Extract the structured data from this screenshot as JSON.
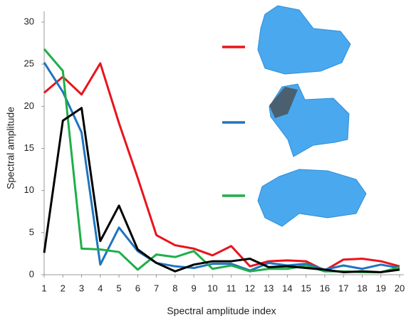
{
  "chart_data": {
    "type": "line",
    "x_label": "Spectral amplitude index",
    "y_label": "Spectral amplitude",
    "x": [
      1,
      2,
      3,
      4,
      5,
      6,
      7,
      8,
      9,
      10,
      11,
      12,
      13,
      14,
      15,
      16,
      17,
      18,
      19,
      20
    ],
    "xlim": [
      1,
      20
    ],
    "xticks": [
      1,
      2,
      3,
      4,
      5,
      6,
      7,
      8,
      9,
      10,
      11,
      12,
      13,
      14,
      15,
      16,
      17,
      18,
      19,
      20
    ],
    "ylim": [
      0,
      30
    ],
    "yticks": [
      0,
      5,
      10,
      15,
      20,
      25,
      30
    ],
    "grid": false,
    "series": [
      {
        "color": "#e8141c",
        "values": [
          21.6,
          23.5,
          21.4,
          25.1,
          18,
          11.5,
          4.7,
          3.5,
          3.1,
          2.3,
          3.4,
          1.0,
          1.6,
          1.7,
          1.6,
          0.5,
          1.8,
          1.9,
          1.6,
          1.0
        ]
      },
      {
        "color": "#1f74bf",
        "values": [
          25.2,
          21.7,
          16.9,
          1.2,
          5.6,
          2.8,
          1.4,
          1.0,
          0.8,
          1.3,
          1.3,
          0.5,
          1.4,
          1.1,
          1.3,
          0.6,
          1.1,
          0.7,
          1.2,
          0.8
        ]
      },
      {
        "color": "#1fae4a",
        "values": [
          26.8,
          24.2,
          3.1,
          3.0,
          2.7,
          0.6,
          2.4,
          2.1,
          2.8,
          0.7,
          1.1,
          0.4,
          0.7,
          0.7,
          1.1,
          0.4,
          0.4,
          0.3,
          0.3,
          0.9
        ]
      },
      {
        "color": "#000000",
        "values": [
          2.6,
          18.3,
          19.8,
          4.0,
          8.2,
          3.0,
          1.4,
          0.4,
          1.2,
          1.6,
          1.6,
          1.9,
          0.9,
          1.0,
          0.8,
          0.6,
          0.3,
          0.4,
          0.3,
          0.6
        ]
      }
    ]
  }
}
